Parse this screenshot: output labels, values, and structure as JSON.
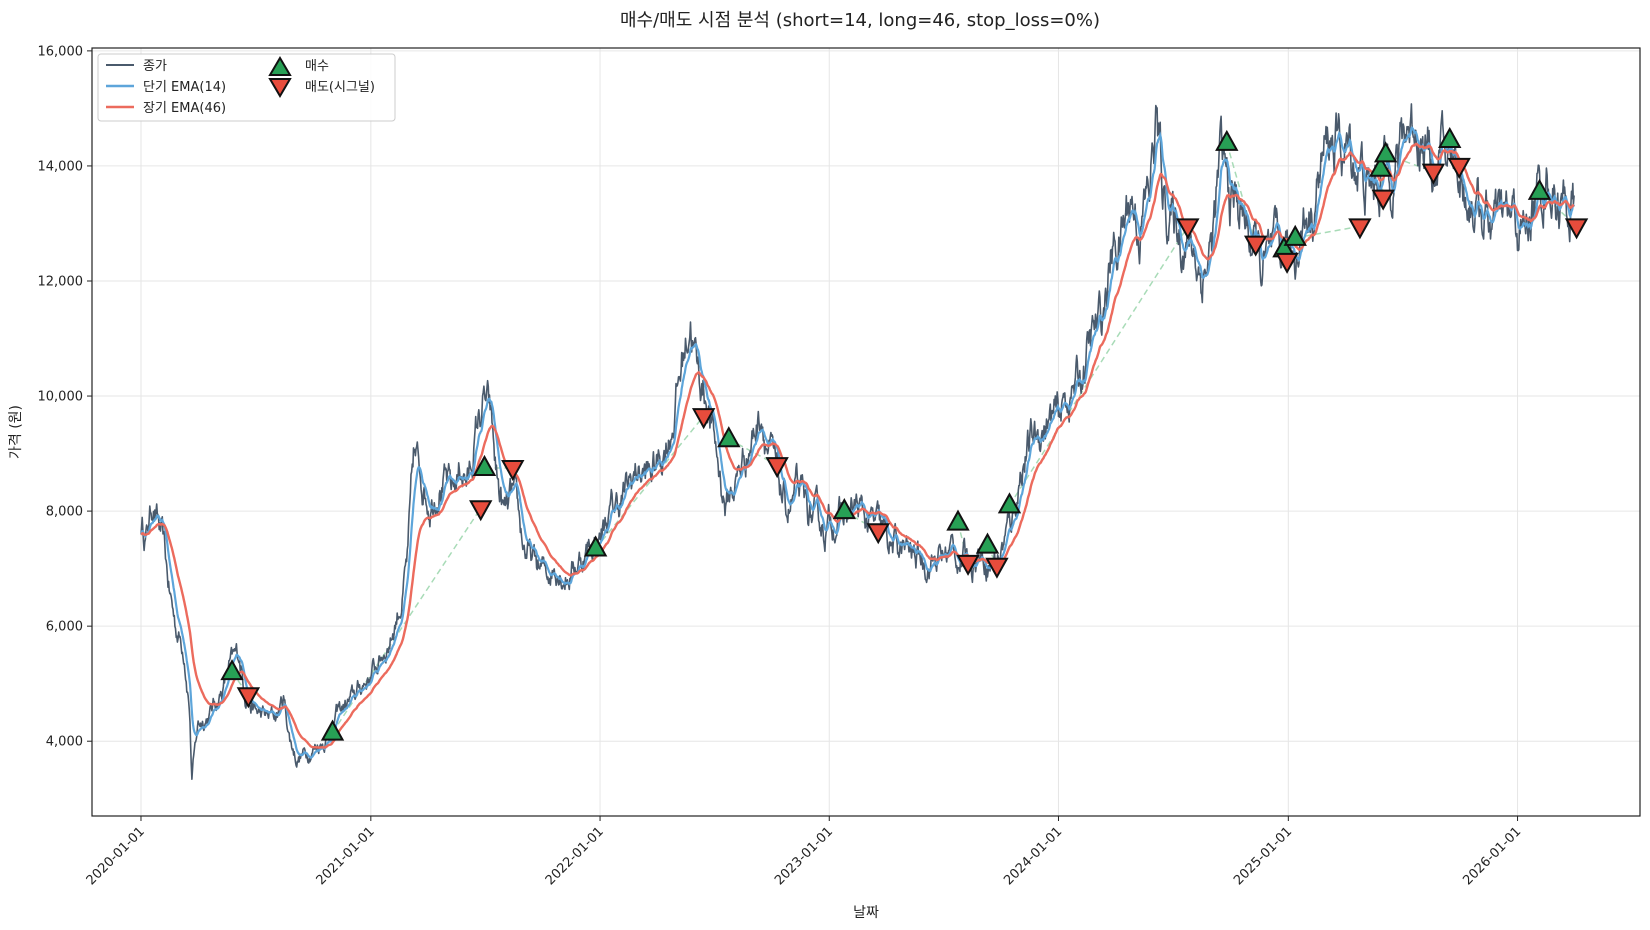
{
  "chart_data": {
    "type": "line",
    "title": "매수/매도 시점 분석 (short=14, long=46, stop_loss=0%)",
    "xlabel": "날짜",
    "ylabel": "가격 (원)",
    "xlim": [
      "2019-10-15",
      "2026-07-15"
    ],
    "ylim": [
      2700,
      16050
    ],
    "x_ticks": [
      "2020-01-01",
      "2021-01-01",
      "2022-01-01",
      "2023-01-01",
      "2024-01-01",
      "2025-01-01",
      "2026-01-01"
    ],
    "y_ticks": [
      4000,
      6000,
      8000,
      10000,
      12000,
      14000,
      16000
    ],
    "y_tick_labels": [
      "4,000",
      "6,000",
      "8,000",
      "10,000",
      "12,000",
      "14,000",
      "16,000"
    ],
    "grid": true,
    "legend_position": "top-left",
    "colors": {
      "close": "#4a5a6c",
      "ema_short": "#5da5da",
      "ema_long": "#ec6b5d",
      "buy": "#27a055",
      "sell": "#e74c3c",
      "trade_link": "#a8dbb7"
    },
    "legend": [
      {
        "key": "close",
        "label": "종가",
        "kind": "line"
      },
      {
        "key": "ema_short",
        "label": "단기 EMA(14)",
        "kind": "line"
      },
      {
        "key": "ema_long",
        "label": "장기 EMA(46)",
        "kind": "line"
      },
      {
        "key": "buy",
        "label": "매수",
        "kind": "marker-up"
      },
      {
        "key": "sell",
        "label": "매도(시그널)",
        "kind": "marker-down"
      }
    ],
    "price_anchors": [
      [
        "2020-01-01",
        7750
      ],
      [
        "2020-01-10",
        7600
      ],
      [
        "2020-01-20",
        8200
      ],
      [
        "2020-01-28",
        7800
      ],
      [
        "2020-02-05",
        7400
      ],
      [
        "2020-02-15",
        6600
      ],
      [
        "2020-02-25",
        6000
      ],
      [
        "2020-03-10",
        5600
      ],
      [
        "2020-03-18",
        4700
      ],
      [
        "2020-03-22",
        3400
      ],
      [
        "2020-04-01",
        4300
      ],
      [
        "2020-04-20",
        4500
      ],
      [
        "2020-05-10",
        4900
      ],
      [
        "2020-05-22",
        5300
      ],
      [
        "2020-06-05",
        5500
      ],
      [
        "2020-06-15",
        4900
      ],
      [
        "2020-07-01",
        4500
      ],
      [
        "2020-07-20",
        4400
      ],
      [
        "2020-08-05",
        4450
      ],
      [
        "2020-08-15",
        4750
      ],
      [
        "2020-08-25",
        4050
      ],
      [
        "2020-09-05",
        3700
      ],
      [
        "2020-09-20",
        3800
      ],
      [
        "2020-10-10",
        3950
      ],
      [
        "2020-10-25",
        4100
      ],
      [
        "2020-11-10",
        4500
      ],
      [
        "2020-12-01",
        4700
      ],
      [
        "2020-12-20",
        5000
      ],
      [
        "2021-01-10",
        5300
      ],
      [
        "2021-02-01",
        5800
      ],
      [
        "2021-02-20",
        6500
      ],
      [
        "2021-03-01",
        7200
      ],
      [
        "2021-03-10",
        8900
      ],
      [
        "2021-03-20",
        8700
      ],
      [
        "2021-04-05",
        8200
      ],
      [
        "2021-04-20",
        8600
      ],
      [
        "2021-05-10",
        8300
      ],
      [
        "2021-05-25",
        8800
      ],
      [
        "2021-06-05",
        8500
      ],
      [
        "2021-06-20",
        9500
      ],
      [
        "2021-07-01",
        9900
      ],
      [
        "2021-07-10",
        9600
      ],
      [
        "2021-07-20",
        8600
      ],
      [
        "2021-08-01",
        7900
      ],
      [
        "2021-08-15",
        8200
      ],
      [
        "2021-09-01",
        7400
      ],
      [
        "2021-09-15",
        7100
      ],
      [
        "2021-10-05",
        6900
      ],
      [
        "2021-10-25",
        7100
      ],
      [
        "2021-11-10",
        6900
      ],
      [
        "2021-11-25",
        7100
      ],
      [
        "2021-12-10",
        7300
      ],
      [
        "2022-01-01",
        7600
      ],
      [
        "2022-01-20",
        8000
      ],
      [
        "2022-02-10",
        8300
      ],
      [
        "2022-03-01",
        8700
      ],
      [
        "2022-03-20",
        8600
      ],
      [
        "2022-04-10",
        9000
      ],
      [
        "2022-04-25",
        9500
      ],
      [
        "2022-05-10",
        10500
      ],
      [
        "2022-05-25",
        11400
      ],
      [
        "2022-06-05",
        10400
      ],
      [
        "2022-06-20",
        10000
      ],
      [
        "2022-07-05",
        9000
      ],
      [
        "2022-07-20",
        8100
      ],
      [
        "2022-08-05",
        8500
      ],
      [
        "2022-08-20",
        9000
      ],
      [
        "2022-09-01",
        9300
      ],
      [
        "2022-09-15",
        9800
      ],
      [
        "2022-09-25",
        9200
      ],
      [
        "2022-10-10",
        8500
      ],
      [
        "2022-10-25",
        8000
      ],
      [
        "2022-11-10",
        8300
      ],
      [
        "2022-11-25",
        8000
      ],
      [
        "2022-12-10",
        7800
      ],
      [
        "2022-12-25",
        7700
      ],
      [
        "2023-01-10",
        7900
      ],
      [
        "2023-02-01",
        7900
      ],
      [
        "2023-02-15",
        8050
      ],
      [
        "2023-03-01",
        7800
      ],
      [
        "2023-03-20",
        7700
      ],
      [
        "2023-04-10",
        7400
      ],
      [
        "2023-05-01",
        7300
      ],
      [
        "2023-05-20",
        7200
      ],
      [
        "2023-06-10",
        7150
      ],
      [
        "2023-07-01",
        7200
      ],
      [
        "2023-07-15",
        7350
      ],
      [
        "2023-08-01",
        7150
      ],
      [
        "2023-08-15",
        7200
      ],
      [
        "2023-09-01",
        7300
      ],
      [
        "2023-09-15",
        7100
      ],
      [
        "2023-10-01",
        7300
      ],
      [
        "2023-10-20",
        7900
      ],
      [
        "2023-11-05",
        8900
      ],
      [
        "2023-11-20",
        9200
      ],
      [
        "2023-12-10",
        9500
      ],
      [
        "2024-01-01",
        9600
      ],
      [
        "2024-01-20",
        10100
      ],
      [
        "2024-02-05",
        10300
      ],
      [
        "2024-02-20",
        10900
      ],
      [
        "2024-03-10",
        11300
      ],
      [
        "2024-03-25",
        12400
      ],
      [
        "2024-04-10",
        12800
      ],
      [
        "2024-04-25",
        13500
      ],
      [
        "2024-05-10",
        13000
      ],
      [
        "2024-05-25",
        13600
      ],
      [
        "2024-06-05",
        14800
      ],
      [
        "2024-06-15",
        13600
      ],
      [
        "2024-07-01",
        13000
      ],
      [
        "2024-07-20",
        12800
      ],
      [
        "2024-08-05",
        12500
      ],
      [
        "2024-08-15",
        12100
      ],
      [
        "2024-09-01",
        12600
      ],
      [
        "2024-09-15",
        14100
      ],
      [
        "2024-10-01",
        13400
      ],
      [
        "2024-10-15",
        13300
      ],
      [
        "2024-11-01",
        12800
      ],
      [
        "2024-11-20",
        12200
      ],
      [
        "2024-12-10",
        12300
      ],
      [
        "2025-01-01",
        12500
      ],
      [
        "2025-01-20",
        12800
      ],
      [
        "2025-02-10",
        13400
      ],
      [
        "2025-02-25",
        14100
      ],
      [
        "2025-03-10",
        14500
      ],
      [
        "2025-03-25",
        14300
      ],
      [
        "2025-04-10",
        14200
      ],
      [
        "2025-04-25",
        14000
      ],
      [
        "2025-05-10",
        13500
      ],
      [
        "2025-05-25",
        13800
      ],
      [
        "2025-06-10",
        14100
      ],
      [
        "2025-06-25",
        14200
      ],
      [
        "2025-07-10",
        14700
      ],
      [
        "2025-07-25",
        14800
      ],
      [
        "2025-08-10",
        14300
      ],
      [
        "2025-08-25",
        14000
      ],
      [
        "2025-09-10",
        14100
      ],
      [
        "2025-09-25",
        14200
      ],
      [
        "2025-10-10",
        13600
      ],
      [
        "2025-10-25",
        13400
      ],
      [
        "2025-11-10",
        13100
      ],
      [
        "2025-11-25",
        12900
      ],
      [
        "2025-12-10",
        13000
      ],
      [
        "2025-12-25",
        13000
      ],
      [
        "2026-01-10",
        12800
      ],
      [
        "2026-01-25",
        13300
      ],
      [
        "2026-02-10",
        13600
      ],
      [
        "2026-02-20",
        13900
      ],
      [
        "2026-03-01",
        13500
      ],
      [
        "2026-03-15",
        13300
      ],
      [
        "2026-04-01",
        13200
      ]
    ],
    "buys": [
      [
        "2020-05-25",
        5200
      ],
      [
        "2020-11-01",
        4150
      ],
      [
        "2021-07-01",
        8750
      ],
      [
        "2021-12-25",
        7350
      ],
      [
        "2022-07-25",
        9250
      ],
      [
        "2023-01-25",
        8000
      ],
      [
        "2023-07-25",
        7800
      ],
      [
        "2023-09-10",
        7400
      ],
      [
        "2023-10-15",
        8100
      ],
      [
        "2024-09-25",
        14400
      ],
      [
        "2024-12-25",
        12550
      ],
      [
        "2025-01-12",
        12750
      ],
      [
        "2025-05-28",
        13950
      ],
      [
        "2025-06-05",
        14200
      ],
      [
        "2025-09-15",
        14450
      ],
      [
        "2026-02-05",
        13550
      ]
    ],
    "sells": [
      [
        "2020-06-20",
        4800
      ],
      [
        "2021-06-25",
        8050
      ],
      [
        "2021-08-15",
        8750
      ],
      [
        "2022-06-15",
        9650
      ],
      [
        "2022-10-10",
        8800
      ],
      [
        "2023-03-20",
        7650
      ],
      [
        "2023-08-10",
        7100
      ],
      [
        "2023-09-25",
        7050
      ],
      [
        "2024-07-25",
        12950
      ],
      [
        "2024-11-10",
        12650
      ],
      [
        "2024-12-30",
        12350
      ],
      [
        "2025-04-25",
        12950
      ],
      [
        "2025-06-01",
        13450
      ],
      [
        "2025-08-20",
        13900
      ],
      [
        "2025-09-30",
        14000
      ],
      [
        "2026-04-05",
        12950
      ]
    ]
  }
}
